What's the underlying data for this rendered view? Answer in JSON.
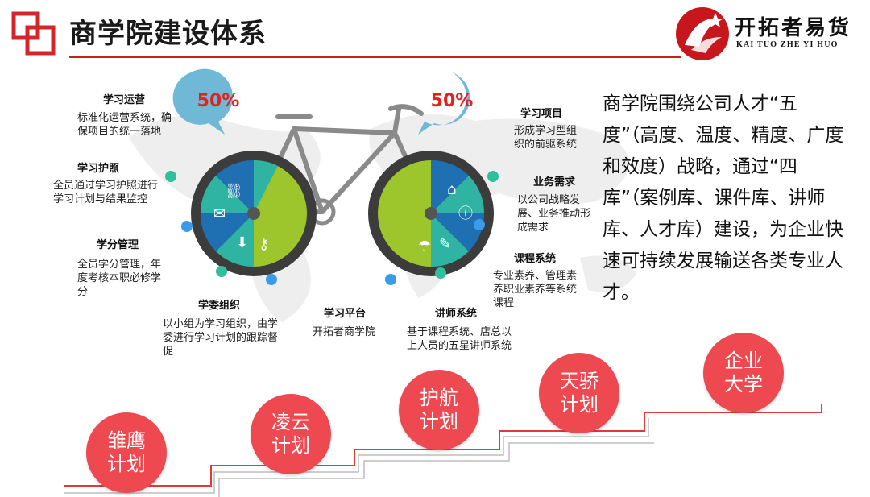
{
  "header": {
    "title": "商学院建设体系",
    "brand_name": "开拓者易货",
    "brand_sub": "KAI TUO ZHE YI HUO"
  },
  "bike": {
    "left_percent": "50%",
    "right_percent": "50%"
  },
  "left_labels": [
    {
      "heading": "学习运营",
      "text": "标准化运营系统，确保项目的统一落地"
    },
    {
      "heading": "学习护照",
      "text": "全员通过学习护照进行学习计划与结果监控"
    },
    {
      "heading": "学分管理",
      "text": "全员学分管理，年度考核本职必修学分"
    },
    {
      "heading": "学委组织",
      "text": "以小组为学习组织，由学委进行学习计划的跟踪督促"
    }
  ],
  "center_labels": [
    {
      "heading": "学习平台",
      "text": "开拓者商学院"
    },
    {
      "heading": "讲师系统",
      "text": "基于课程系统、店总以上人员的五星讲师系统"
    }
  ],
  "right_labels": [
    {
      "heading": "学习项目",
      "text": "形成学习型组织的前驱系统"
    },
    {
      "heading": "业务需求",
      "text": "以公司战略发展、业务推动形成需求"
    },
    {
      "heading": "课程系统",
      "text": "专业素养、管理素养职业素养等系统课程"
    }
  ],
  "summary": "商学院围绕公司人才“五度”（高度、温度、精度、广度和效度）战略，通过“四库”（案例库、课件库、讲师库、人才库）建设，为企业快速可持续发展输送各类专业人才。",
  "stairs": [
    {
      "line1": "雏鹰",
      "line2": "计划"
    },
    {
      "line1": "凌云",
      "line2": "计划"
    },
    {
      "line1": "护航",
      "line2": "计划"
    },
    {
      "line1": "天骄",
      "line2": "计划"
    },
    {
      "line1": "企业",
      "line2": "大学"
    }
  ],
  "colors": {
    "accent_red": "#c91d22",
    "circle_red": "#ee4851",
    "wheel_green": "#9cc62b",
    "wheel_teal": "#2fb3a3",
    "wheel_blue": "#1f6fb3",
    "bubble_blue": "#6fb8d6"
  },
  "icons": [
    "link-icon",
    "chat-icon",
    "download-icon",
    "key-icon",
    "home-icon",
    "info-icon",
    "umbrella-icon",
    "edit-icon"
  ]
}
